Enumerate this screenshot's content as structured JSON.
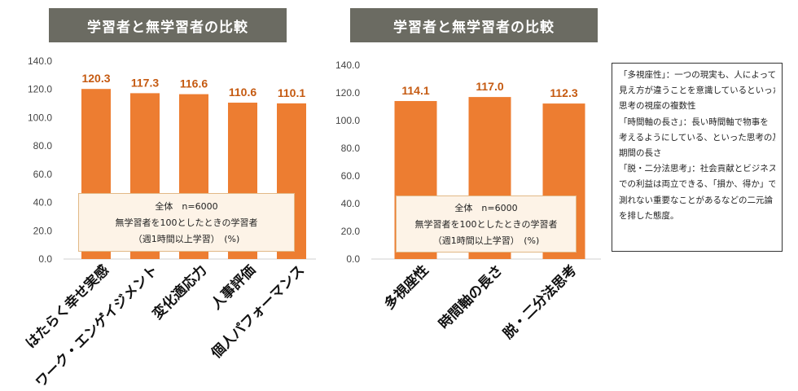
{
  "chart_data": [
    {
      "type": "bar",
      "title": "学習者と無学習者の比較",
      "categories": [
        "はたらく幸せ実感",
        "ワーク・エンゲイジメント",
        "変化適応力",
        "人事評価",
        "個人パフォーマンス"
      ],
      "values": [
        120.3,
        117.3,
        116.6,
        110.6,
        110.1
      ],
      "value_labels": [
        "120.3",
        "117.3",
        "116.6",
        "110.6",
        "110.1"
      ],
      "yticks": [
        "0.0",
        "20.0",
        "40.0",
        "60.0",
        "80.0",
        "100.0",
        "120.0",
        "140.0"
      ],
      "ylim": [
        0,
        140
      ],
      "xlabel": "",
      "ylabel": "",
      "grid": false,
      "bar_color": "#ed7d31",
      "note": [
        "全体　n=6000",
        "無学習者を100としたときの学習者",
        "（週1時間以上学習）　(%)"
      ]
    },
    {
      "type": "bar",
      "title": "学習者と無学習者の比較",
      "categories": [
        "多視座性",
        "時間軸の長さ",
        "脱・二分法思考"
      ],
      "values": [
        114.1,
        117.0,
        112.3
      ],
      "value_labels": [
        "114.1",
        "117.0",
        "112.3"
      ],
      "yticks": [
        "0.0",
        "20.0",
        "40.0",
        "60.0",
        "80.0",
        "100.0",
        "120.0",
        "140.0"
      ],
      "ylim": [
        0,
        140
      ],
      "xlabel": "",
      "ylabel": "",
      "grid": false,
      "bar_color": "#ed7d31",
      "note": [
        "全体　n=6000",
        "無学習者を100としたときの学習者",
        "（週1時間以上学習）　(%)"
      ]
    }
  ],
  "definitions": [
    "「多視座性」：一つの現実も、人によって",
    "見え方が違うことを意識しているといった",
    "思考の視座の複数性",
    "「時間軸の長さ」：長い時間軸で物事を",
    "考えるようにしている、といった思考の及ぶ",
    "期間の長さ",
    "「脱・二分法思考」：社会貢献とビジネス",
    "での利益は両立できる、「損か、得か」では",
    "測れない重要なことがあるなどの二元論",
    "を排した態度。"
  ],
  "colors": {
    "bar": "#ed7d31",
    "value_label": "#c55a11",
    "title_bg": "#6b6b62"
  }
}
